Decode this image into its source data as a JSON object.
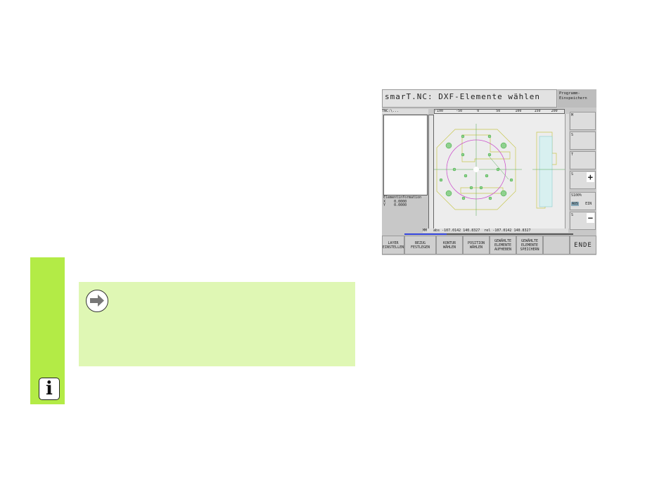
{
  "page": {
    "info_icon": "info-icon",
    "note_icon": "arrow-right-icon",
    "accent": "#b3eb46",
    "note_bg": "#dff7b4"
  },
  "screen": {
    "title": "smarT.NC: DXF-Elemente wählen",
    "top_right_button": "Programm-Einspeichern",
    "path": "TNC:\\...",
    "ruler": "-100      -50       0        50       100      150     200",
    "element_info": {
      "label": "Elementinformation",
      "x_label": "X",
      "x_value": "0.0000",
      "y_label": "Y",
      "y_value": "0.0000"
    },
    "status": "MM   abs -107.0142 140.8327  rel -107.0142 140.8327",
    "softkeys": [
      {
        "label": "LAYER EINSTELLEN"
      },
      {
        "label": "BEZUG FESTLEGEN"
      },
      {
        "label": "KONTUR WÄHLEN"
      },
      {
        "label": "POSITION WÄHLEN"
      },
      {
        "label": "GEWÄHLTE ELEMENTE AUFHEBEN"
      },
      {
        "label": "GEWÄHLTE ELEMENTE SPEICHERN"
      },
      {
        "label": ""
      },
      {
        "label": "ENDE"
      }
    ],
    "side_keys": [
      {
        "label": "M"
      },
      {
        "label": "S"
      },
      {
        "label": "T"
      },
      {
        "label": "S",
        "symbol": "+"
      },
      {
        "label": "S100%",
        "off": "AUS",
        "on": "EIN"
      },
      {
        "label": "S",
        "symbol": "−"
      }
    ]
  }
}
